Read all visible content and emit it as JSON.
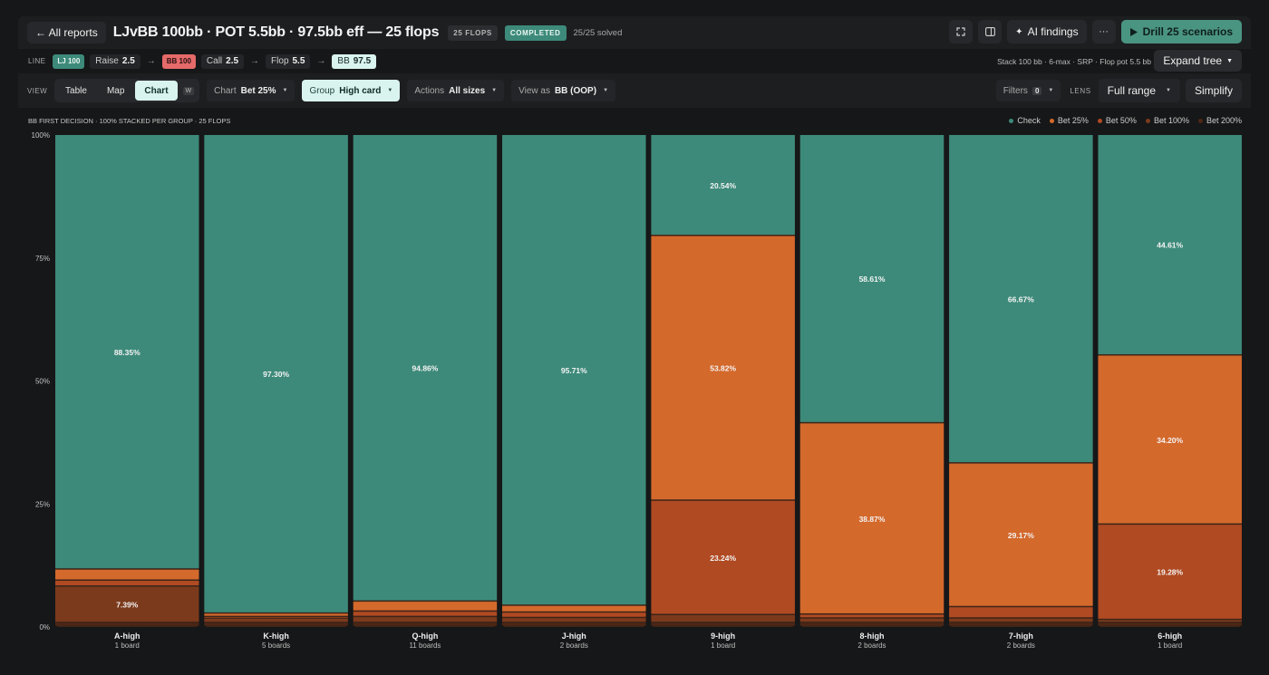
{
  "header": {
    "back_label": "← All reports",
    "title": "LJvBB 100bb · POT 5.5bb · 97.5bb eff — 25 flops",
    "flops_pill": "25 FLOPS",
    "status_pill": "COMPLETED",
    "solved": "25/25 solved",
    "ai_findings": "AI findings",
    "more": "···",
    "drill": "Drill 25 scenarios"
  },
  "line": {
    "label": "LINE",
    "lj": "LJ 100",
    "raise_label": "Raise",
    "raise_value": "2.5",
    "bb100": "BB 100",
    "call_label": "Call",
    "call_value": "2.5",
    "flop_label": "Flop",
    "flop_value": "5.5",
    "bb_label": "BB",
    "bb_value": "97.5",
    "stack_info": "Stack 100 bb · 6-max · SRP · Flop pot 5.5 bb",
    "expand": "Expand tree"
  },
  "view": {
    "label": "VIEW",
    "tabs": [
      "Table",
      "Map",
      "Chart"
    ],
    "active_tab": "Chart",
    "shortcut": "W",
    "chart_label": "Chart",
    "chart_value": "Bet 25%",
    "group_label": "Group",
    "group_value": "High card",
    "actions_label": "Actions",
    "actions_value": "All sizes",
    "viewas_label": "View as",
    "viewas_value": "BB (OOP)",
    "filters_label": "Filters",
    "filters_count": "0",
    "lens_label": "LENS",
    "lens_value": "Full range",
    "simplify": "Simplify"
  },
  "chart_caption": "BB FIRST DECISION · 100% STACKED PER GROUP · 25 FLOPS",
  "colors": {
    "Check": "#3d8a7a",
    "Bet 25%": "#d4692c",
    "Bet 50%": "#b04a22",
    "Bet 100%": "#7c3a1c",
    "Bet 200%": "#4d2614"
  },
  "chart_data": {
    "type": "bar",
    "stacked": true,
    "ylim": [
      0,
      100
    ],
    "yticks": [
      "0%",
      "25%",
      "50%",
      "75%",
      "100%"
    ],
    "categories": [
      "A-high",
      "K-high",
      "Q-high",
      "J-high",
      "9-high",
      "8-high",
      "7-high",
      "6-high"
    ],
    "sublabels": [
      "1 board",
      "5 boards",
      "11 boards",
      "2 boards",
      "1 board",
      "2 boards",
      "2 boards",
      "1 board"
    ],
    "legend": [
      "Check",
      "Bet 25%",
      "Bet 50%",
      "Bet 100%",
      "Bet 200%"
    ],
    "series": [
      {
        "name": "Bet 200%",
        "values": [
          0.8,
          0.8,
          0.8,
          0.8,
          0.8,
          0.8,
          0.8,
          0.8
        ]
      },
      {
        "name": "Bet 100%",
        "values": [
          7.39,
          0.9,
          1.2,
          1.0,
          1.6,
          0.9,
          0.9,
          0.6
        ]
      },
      {
        "name": "Bet 50%",
        "values": [
          1.2,
          0.3,
          1.1,
          1.1,
          23.24,
          0.8,
          2.3,
          19.28
        ]
      },
      {
        "name": "Bet 25%",
        "values": [
          2.26,
          0.7,
          2.04,
          1.39,
          53.82,
          38.87,
          29.17,
          34.2
        ]
      },
      {
        "name": "Check",
        "values": [
          88.35,
          97.3,
          94.86,
          95.71,
          20.54,
          58.61,
          66.67,
          44.61
        ]
      }
    ],
    "data_labels": {
      "Check": [
        "88.35%",
        "97.30%",
        "94.86%",
        "95.71%",
        "20.54%",
        "58.61%",
        "66.67%",
        "44.61%"
      ],
      "Bet 25%": [
        "",
        "",
        "",
        "",
        "53.82%",
        "38.87%",
        "29.17%",
        "34.20%"
      ],
      "Bet 50%": [
        "",
        "",
        "",
        "",
        "23.24%",
        "",
        "",
        "19.28%"
      ],
      "Bet 100%": [
        "7.39%",
        "",
        "",
        "",
        "",
        "",
        "",
        ""
      ]
    }
  }
}
